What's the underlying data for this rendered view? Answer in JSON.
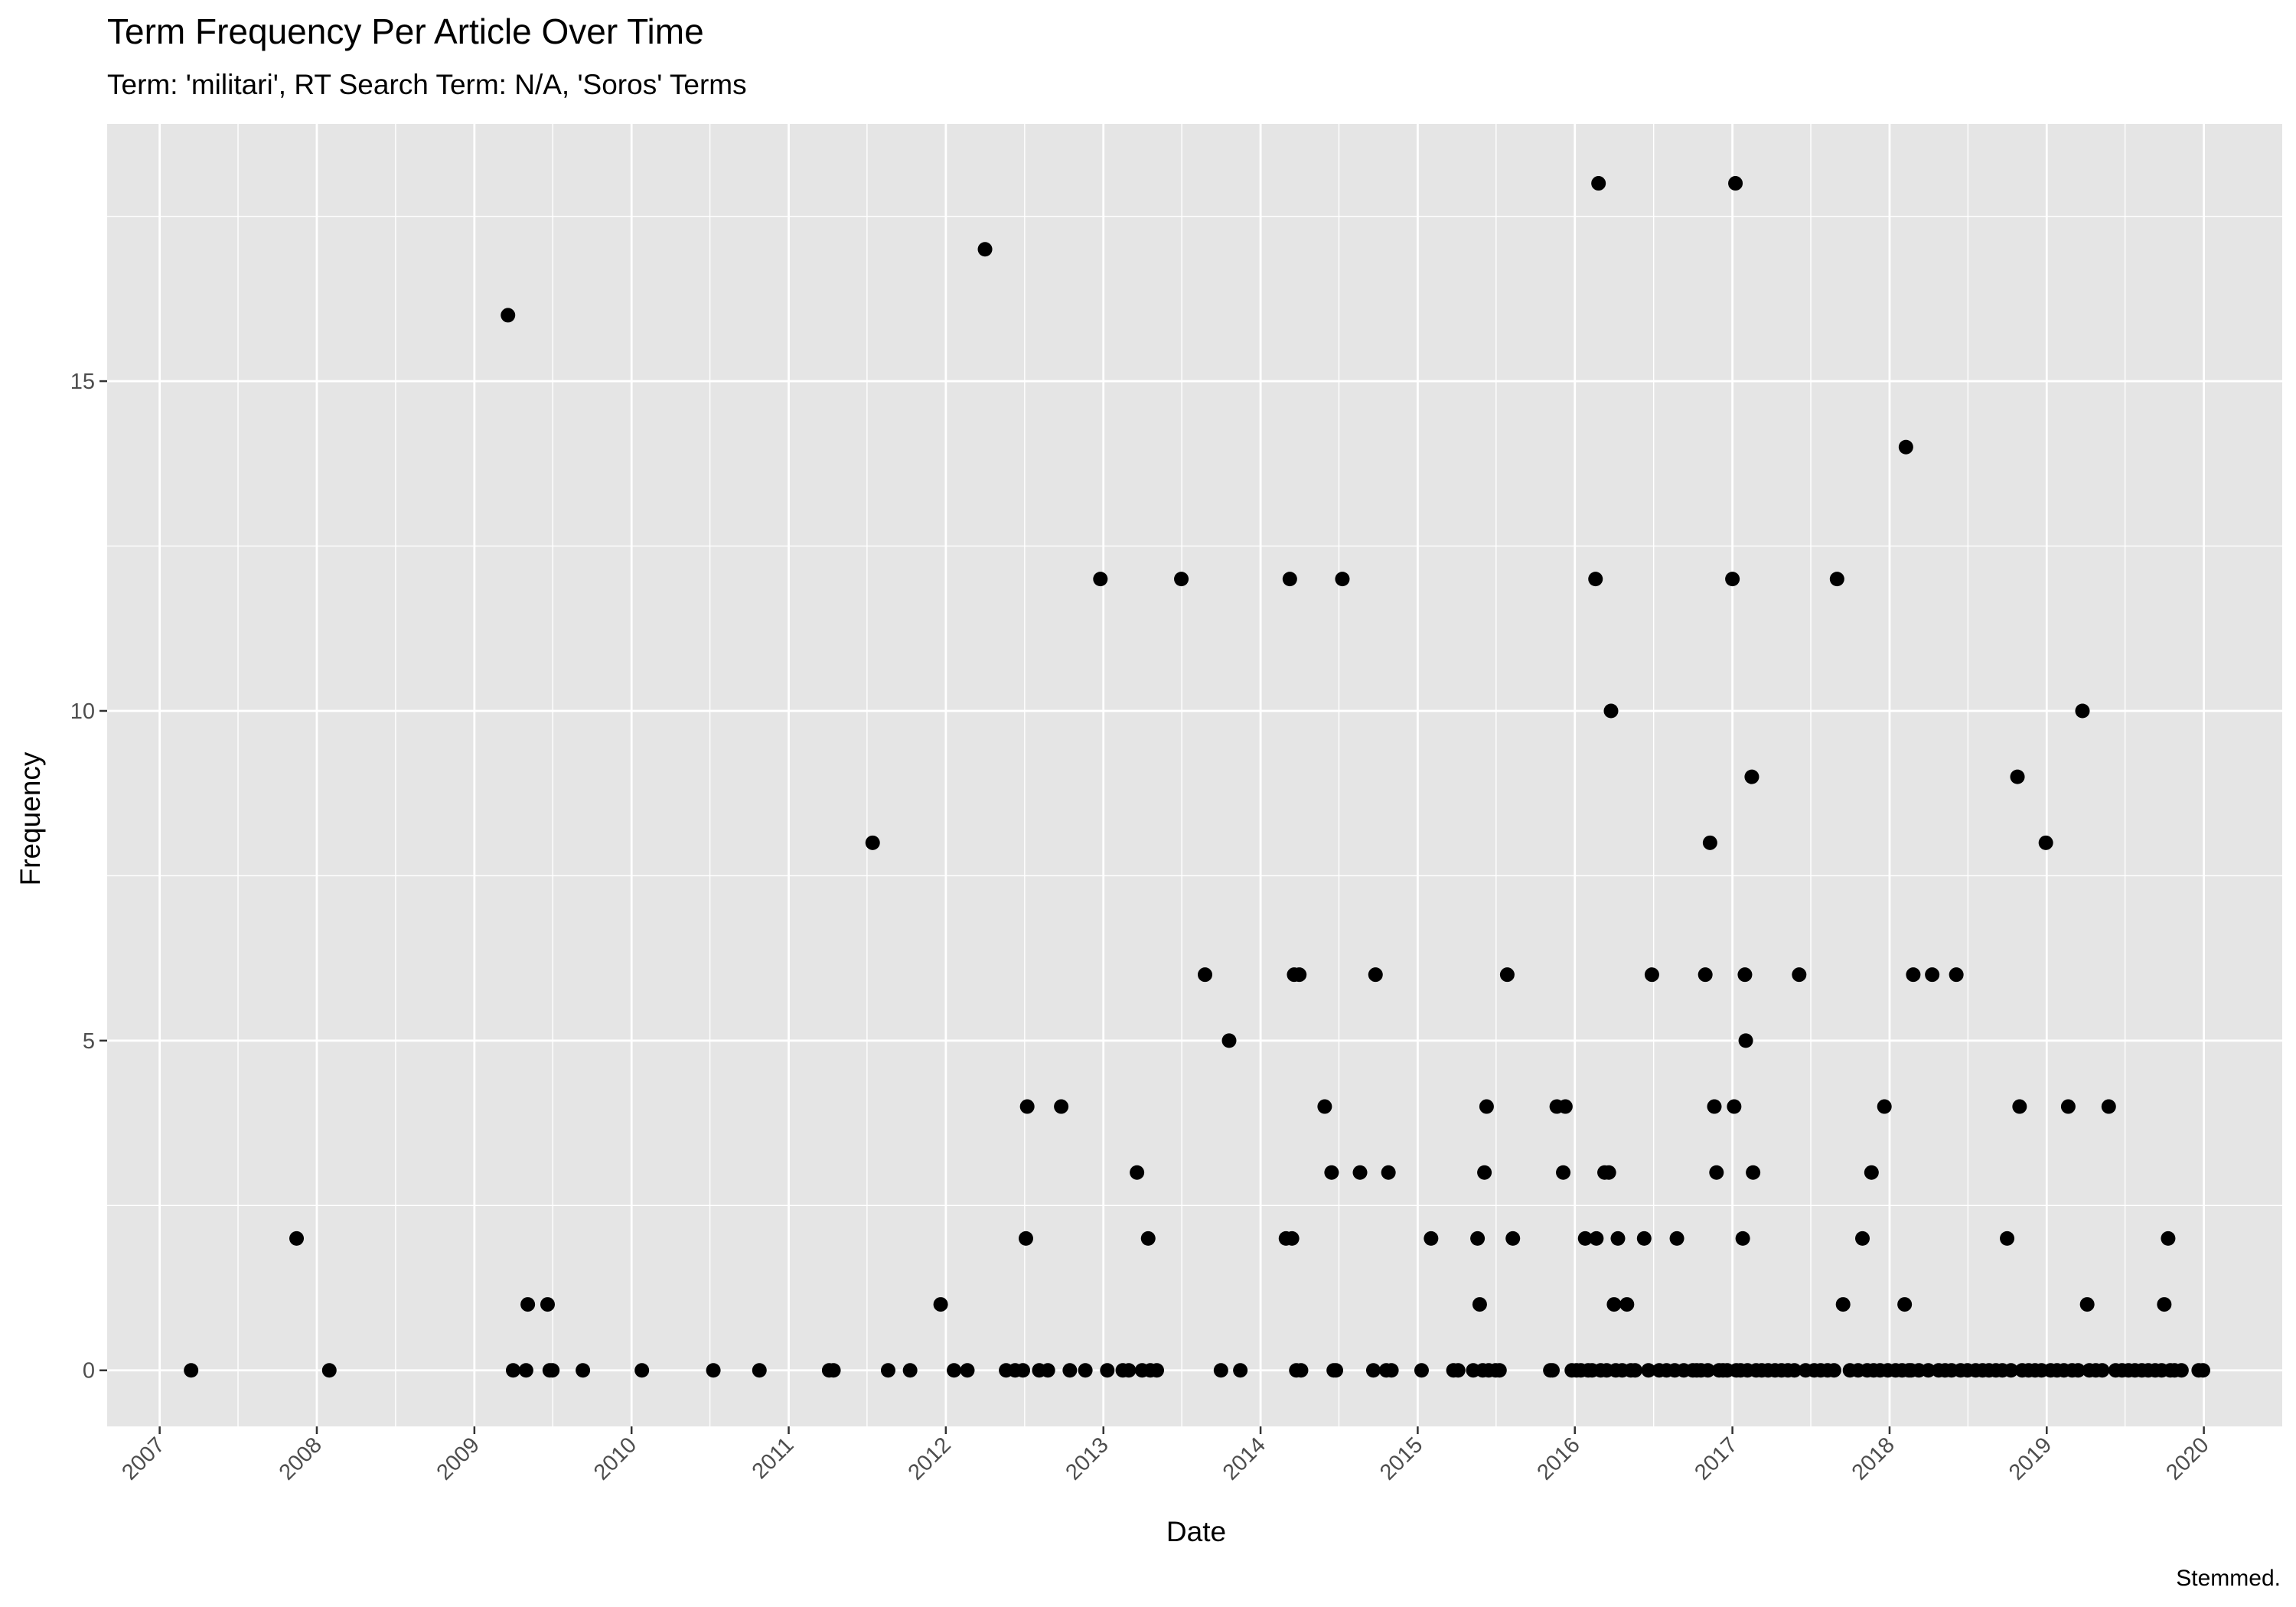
{
  "chart_data": {
    "type": "scatter",
    "title": "Term Frequency Per Article Over Time",
    "subtitle": "Term: 'militari', RT Search Term: N/A, 'Soros' Terms",
    "caption": "Stemmed.",
    "xlabel": "Date",
    "ylabel": "Frequency",
    "x_ticks": [
      "2007",
      "2008",
      "2009",
      "2010",
      "2011",
      "2012",
      "2013",
      "2014",
      "2015",
      "2016",
      "2017",
      "2018",
      "2019",
      "2020"
    ],
    "y_ticks": [
      0,
      5,
      10,
      15
    ],
    "xlim": [
      "2006-09-01",
      "2020-07-01"
    ],
    "ylim": [
      -0.85,
      18.9
    ],
    "grid": true,
    "point_color": "#000000",
    "background_color": "#e5e5e5",
    "grid_color": "#ffffff",
    "points": [
      {
        "x": "2007-03-15",
        "y": 0
      },
      {
        "x": "2007-11-15",
        "y": 2
      },
      {
        "x": "2008-01-30",
        "y": 0
      },
      {
        "x": "2009-03-20",
        "y": 16
      },
      {
        "x": "2009-04-01",
        "y": 0
      },
      {
        "x": "2009-05-01",
        "y": 0
      },
      {
        "x": "2009-05-05",
        "y": 1
      },
      {
        "x": "2009-06-20",
        "y": 1
      },
      {
        "x": "2009-06-25",
        "y": 0
      },
      {
        "x": "2009-07-01",
        "y": 0
      },
      {
        "x": "2009-09-10",
        "y": 0
      },
      {
        "x": "2010-01-25",
        "y": 0
      },
      {
        "x": "2010-07-10",
        "y": 0
      },
      {
        "x": "2010-10-25",
        "y": 0
      },
      {
        "x": "2011-04-05",
        "y": 0
      },
      {
        "x": "2011-04-15",
        "y": 0
      },
      {
        "x": "2011-07-15",
        "y": 8
      },
      {
        "x": "2011-08-20",
        "y": 0
      },
      {
        "x": "2011-10-10",
        "y": 0
      },
      {
        "x": "2011-12-20",
        "y": 1
      },
      {
        "x": "2012-01-20",
        "y": 0
      },
      {
        "x": "2012-02-20",
        "y": 0
      },
      {
        "x": "2012-04-01",
        "y": 17
      },
      {
        "x": "2012-05-20",
        "y": 0
      },
      {
        "x": "2012-06-10",
        "y": 0
      },
      {
        "x": "2012-06-28",
        "y": 0
      },
      {
        "x": "2012-07-05",
        "y": 2
      },
      {
        "x": "2012-07-08",
        "y": 4
      },
      {
        "x": "2012-08-05",
        "y": 0
      },
      {
        "x": "2012-08-25",
        "y": 0
      },
      {
        "x": "2012-09-25",
        "y": 4
      },
      {
        "x": "2012-10-15",
        "y": 0
      },
      {
        "x": "2012-11-20",
        "y": 0
      },
      {
        "x": "2012-12-25",
        "y": 12
      },
      {
        "x": "2013-01-10",
        "y": 0
      },
      {
        "x": "2013-02-15",
        "y": 0
      },
      {
        "x": "2013-03-01",
        "y": 0
      },
      {
        "x": "2013-03-20",
        "y": 3
      },
      {
        "x": "2013-04-01",
        "y": 0
      },
      {
        "x": "2013-04-15",
        "y": 2
      },
      {
        "x": "2013-04-20",
        "y": 0
      },
      {
        "x": "2013-05-05",
        "y": 0
      },
      {
        "x": "2013-07-01",
        "y": 12
      },
      {
        "x": "2013-08-25",
        "y": 6
      },
      {
        "x": "2013-10-01",
        "y": 0
      },
      {
        "x": "2013-10-20",
        "y": 5
      },
      {
        "x": "2013-11-15",
        "y": 0
      },
      {
        "x": "2014-03-01",
        "y": 2
      },
      {
        "x": "2014-03-10",
        "y": 12
      },
      {
        "x": "2014-03-15",
        "y": 2
      },
      {
        "x": "2014-03-20",
        "y": 6
      },
      {
        "x": "2014-03-25",
        "y": 0
      },
      {
        "x": "2014-04-01",
        "y": 6
      },
      {
        "x": "2014-04-05",
        "y": 0
      },
      {
        "x": "2014-05-30",
        "y": 4
      },
      {
        "x": "2014-06-15",
        "y": 3
      },
      {
        "x": "2014-06-20",
        "y": 0
      },
      {
        "x": "2014-06-25",
        "y": 0
      },
      {
        "x": "2014-07-10",
        "y": 12
      },
      {
        "x": "2014-08-20",
        "y": 3
      },
      {
        "x": "2014-09-20",
        "y": 0
      },
      {
        "x": "2014-09-25",
        "y": 6
      },
      {
        "x": "2014-10-20",
        "y": 0
      },
      {
        "x": "2014-10-25",
        "y": 3
      },
      {
        "x": "2014-11-01",
        "y": 0
      },
      {
        "x": "2015-01-10",
        "y": 0
      },
      {
        "x": "2015-02-01",
        "y": 2
      },
      {
        "x": "2015-03-25",
        "y": 0
      },
      {
        "x": "2015-04-05",
        "y": 0
      },
      {
        "x": "2015-05-10",
        "y": 0
      },
      {
        "x": "2015-05-20",
        "y": 2
      },
      {
        "x": "2015-05-25",
        "y": 1
      },
      {
        "x": "2015-06-01",
        "y": 0
      },
      {
        "x": "2015-06-05",
        "y": 3
      },
      {
        "x": "2015-06-10",
        "y": 4
      },
      {
        "x": "2015-06-15",
        "y": 0
      },
      {
        "x": "2015-07-01",
        "y": 0
      },
      {
        "x": "2015-07-10",
        "y": 0
      },
      {
        "x": "2015-07-28",
        "y": 6
      },
      {
        "x": "2015-08-10",
        "y": 2
      },
      {
        "x": "2015-11-05",
        "y": 0
      },
      {
        "x": "2015-11-10",
        "y": 0
      },
      {
        "x": "2015-11-20",
        "y": 4
      },
      {
        "x": "2015-12-05",
        "y": 3
      },
      {
        "x": "2015-12-10",
        "y": 4
      },
      {
        "x": "2015-12-25",
        "y": 0
      },
      {
        "x": "2016-01-05",
        "y": 0
      },
      {
        "x": "2016-01-15",
        "y": 0
      },
      {
        "x": "2016-01-25",
        "y": 2
      },
      {
        "x": "2016-02-01",
        "y": 0
      },
      {
        "x": "2016-02-10",
        "y": 0
      },
      {
        "x": "2016-02-18",
        "y": 12
      },
      {
        "x": "2016-02-20",
        "y": 2
      },
      {
        "x": "2016-02-25",
        "y": 18
      },
      {
        "x": "2016-03-01",
        "y": 0
      },
      {
        "x": "2016-03-10",
        "y": 3
      },
      {
        "x": "2016-03-15",
        "y": 0
      },
      {
        "x": "2016-03-20",
        "y": 3
      },
      {
        "x": "2016-03-25",
        "y": 10
      },
      {
        "x": "2016-04-01",
        "y": 1
      },
      {
        "x": "2016-04-05",
        "y": 0
      },
      {
        "x": "2016-04-10",
        "y": 2
      },
      {
        "x": "2016-04-20",
        "y": 0
      },
      {
        "x": "2016-05-01",
        "y": 1
      },
      {
        "x": "2016-05-10",
        "y": 0
      },
      {
        "x": "2016-05-20",
        "y": 0
      },
      {
        "x": "2016-06-10",
        "y": 2
      },
      {
        "x": "2016-06-20",
        "y": 0
      },
      {
        "x": "2016-06-28",
        "y": 6
      },
      {
        "x": "2016-07-15",
        "y": 0
      },
      {
        "x": "2016-08-01",
        "y": 0
      },
      {
        "x": "2016-08-20",
        "y": 0
      },
      {
        "x": "2016-08-25",
        "y": 2
      },
      {
        "x": "2016-09-10",
        "y": 0
      },
      {
        "x": "2016-10-01",
        "y": 0
      },
      {
        "x": "2016-10-10",
        "y": 0
      },
      {
        "x": "2016-10-20",
        "y": 0
      },
      {
        "x": "2016-10-30",
        "y": 6
      },
      {
        "x": "2016-11-05",
        "y": 0
      },
      {
        "x": "2016-11-10",
        "y": 8
      },
      {
        "x": "2016-11-20",
        "y": 4
      },
      {
        "x": "2016-11-25",
        "y": 3
      },
      {
        "x": "2016-12-01",
        "y": 0
      },
      {
        "x": "2016-12-10",
        "y": 0
      },
      {
        "x": "2016-12-20",
        "y": 0
      },
      {
        "x": "2017-01-01",
        "y": 12
      },
      {
        "x": "2017-01-05",
        "y": 4
      },
      {
        "x": "2017-01-08",
        "y": 18
      },
      {
        "x": "2017-01-10",
        "y": 0
      },
      {
        "x": "2017-01-20",
        "y": 0
      },
      {
        "x": "2017-01-25",
        "y": 2
      },
      {
        "x": "2017-01-30",
        "y": 6
      },
      {
        "x": "2017-02-01",
        "y": 5
      },
      {
        "x": "2017-02-05",
        "y": 0
      },
      {
        "x": "2017-02-15",
        "y": 9
      },
      {
        "x": "2017-02-18",
        "y": 3
      },
      {
        "x": "2017-02-25",
        "y": 0
      },
      {
        "x": "2017-03-10",
        "y": 0
      },
      {
        "x": "2017-03-25",
        "y": 0
      },
      {
        "x": "2017-04-10",
        "y": 0
      },
      {
        "x": "2017-04-25",
        "y": 0
      },
      {
        "x": "2017-05-10",
        "y": 0
      },
      {
        "x": "2017-05-25",
        "y": 0
      },
      {
        "x": "2017-06-05",
        "y": 6
      },
      {
        "x": "2017-06-20",
        "y": 0
      },
      {
        "x": "2017-07-10",
        "y": 0
      },
      {
        "x": "2017-07-25",
        "y": 0
      },
      {
        "x": "2017-08-10",
        "y": 0
      },
      {
        "x": "2017-08-25",
        "y": 0
      },
      {
        "x": "2017-09-01",
        "y": 12
      },
      {
        "x": "2017-09-15",
        "y": 1
      },
      {
        "x": "2017-10-01",
        "y": 0
      },
      {
        "x": "2017-10-20",
        "y": 0
      },
      {
        "x": "2017-10-30",
        "y": 2
      },
      {
        "x": "2017-11-10",
        "y": 0
      },
      {
        "x": "2017-11-20",
        "y": 3
      },
      {
        "x": "2017-11-25",
        "y": 0
      },
      {
        "x": "2017-12-10",
        "y": 0
      },
      {
        "x": "2017-12-20",
        "y": 4
      },
      {
        "x": "2017-12-28",
        "y": 0
      },
      {
        "x": "2018-01-15",
        "y": 0
      },
      {
        "x": "2018-01-30",
        "y": 0
      },
      {
        "x": "2018-02-05",
        "y": 1
      },
      {
        "x": "2018-02-08",
        "y": 14
      },
      {
        "x": "2018-02-15",
        "y": 0
      },
      {
        "x": "2018-02-20",
        "y": 0
      },
      {
        "x": "2018-02-25",
        "y": 6
      },
      {
        "x": "2018-03-10",
        "y": 0
      },
      {
        "x": "2018-04-01",
        "y": 0
      },
      {
        "x": "2018-04-10",
        "y": 6
      },
      {
        "x": "2018-04-25",
        "y": 0
      },
      {
        "x": "2018-05-10",
        "y": 0
      },
      {
        "x": "2018-05-25",
        "y": 0
      },
      {
        "x": "2018-06-05",
        "y": 6
      },
      {
        "x": "2018-06-15",
        "y": 0
      },
      {
        "x": "2018-07-01",
        "y": 0
      },
      {
        "x": "2018-07-20",
        "y": 0
      },
      {
        "x": "2018-08-05",
        "y": 0
      },
      {
        "x": "2018-08-20",
        "y": 0
      },
      {
        "x": "2018-09-05",
        "y": 0
      },
      {
        "x": "2018-09-20",
        "y": 0
      },
      {
        "x": "2018-10-01",
        "y": 2
      },
      {
        "x": "2018-10-10",
        "y": 0
      },
      {
        "x": "2018-10-25",
        "y": 9
      },
      {
        "x": "2018-10-30",
        "y": 4
      },
      {
        "x": "2018-11-05",
        "y": 0
      },
      {
        "x": "2018-11-20",
        "y": 0
      },
      {
        "x": "2018-12-05",
        "y": 0
      },
      {
        "x": "2018-12-20",
        "y": 0
      },
      {
        "x": "2018-12-30",
        "y": 8
      },
      {
        "x": "2019-01-10",
        "y": 0
      },
      {
        "x": "2019-01-25",
        "y": 0
      },
      {
        "x": "2019-02-10",
        "y": 0
      },
      {
        "x": "2019-02-20",
        "y": 4
      },
      {
        "x": "2019-03-01",
        "y": 0
      },
      {
        "x": "2019-03-15",
        "y": 0
      },
      {
        "x": "2019-03-25",
        "y": 10
      },
      {
        "x": "2019-04-05",
        "y": 1
      },
      {
        "x": "2019-04-10",
        "y": 0
      },
      {
        "x": "2019-04-25",
        "y": 0
      },
      {
        "x": "2019-05-10",
        "y": 0
      },
      {
        "x": "2019-05-25",
        "y": 4
      },
      {
        "x": "2019-06-10",
        "y": 0
      },
      {
        "x": "2019-06-25",
        "y": 0
      },
      {
        "x": "2019-07-10",
        "y": 0
      },
      {
        "x": "2019-07-25",
        "y": 0
      },
      {
        "x": "2019-08-10",
        "y": 0
      },
      {
        "x": "2019-08-25",
        "y": 0
      },
      {
        "x": "2019-09-10",
        "y": 0
      },
      {
        "x": "2019-09-25",
        "y": 0
      },
      {
        "x": "2019-10-01",
        "y": 1
      },
      {
        "x": "2019-10-10",
        "y": 2
      },
      {
        "x": "2019-10-15",
        "y": 0
      },
      {
        "x": "2019-10-25",
        "y": 0
      },
      {
        "x": "2019-11-10",
        "y": 0
      },
      {
        "x": "2019-12-20",
        "y": 0
      },
      {
        "x": "2019-12-30",
        "y": 0
      }
    ]
  }
}
